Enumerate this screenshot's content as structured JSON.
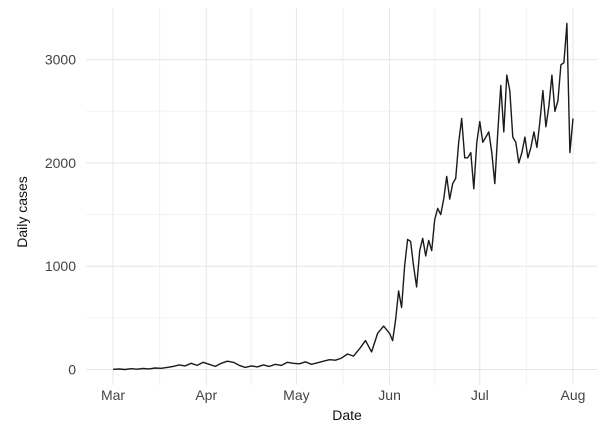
{
  "chart_data": {
    "type": "line",
    "title": "",
    "xlabel": "Date",
    "ylabel": "Daily cases",
    "x_ticks": [
      {
        "label": "Mar",
        "date": "2020-03-01"
      },
      {
        "label": "Apr",
        "date": "2020-04-01"
      },
      {
        "label": "May",
        "date": "2020-05-01"
      },
      {
        "label": "Jun",
        "date": "2020-06-01"
      },
      {
        "label": "Jul",
        "date": "2020-07-01"
      },
      {
        "label": "Aug",
        "date": "2020-08-01"
      }
    ],
    "y_ticks": [
      0,
      1000,
      2000,
      3000
    ],
    "xlim": [
      "2020-02-21",
      "2020-08-09"
    ],
    "ylim": [
      -150,
      3500
    ],
    "grid": true,
    "colors": {
      "line": "#1a1a1a",
      "grid": "#e6e6e6"
    },
    "series": [
      {
        "x": [
          "2020-03-01",
          "2020-03-03",
          "2020-03-05",
          "2020-03-07",
          "2020-03-09",
          "2020-03-11",
          "2020-03-13",
          "2020-03-15",
          "2020-03-17",
          "2020-03-19",
          "2020-03-21",
          "2020-03-23",
          "2020-03-25",
          "2020-03-27",
          "2020-03-29",
          "2020-03-31",
          "2020-04-02",
          "2020-04-04",
          "2020-04-06",
          "2020-04-08",
          "2020-04-10",
          "2020-04-12",
          "2020-04-14",
          "2020-04-16",
          "2020-04-18",
          "2020-04-20",
          "2020-04-22",
          "2020-04-24",
          "2020-04-26",
          "2020-04-28",
          "2020-04-30",
          "2020-05-02",
          "2020-05-04",
          "2020-05-06",
          "2020-05-08",
          "2020-05-10",
          "2020-05-12",
          "2020-05-14",
          "2020-05-16",
          "2020-05-18",
          "2020-05-20",
          "2020-05-22",
          "2020-05-24",
          "2020-05-26",
          "2020-05-28",
          "2020-05-30",
          "2020-06-01",
          "2020-06-02",
          "2020-06-03",
          "2020-06-04",
          "2020-06-05",
          "2020-06-06",
          "2020-06-07",
          "2020-06-08",
          "2020-06-09",
          "2020-06-10",
          "2020-06-11",
          "2020-06-12",
          "2020-06-13",
          "2020-06-14",
          "2020-06-15",
          "2020-06-16",
          "2020-06-17",
          "2020-06-18",
          "2020-06-19",
          "2020-06-20",
          "2020-06-21",
          "2020-06-22",
          "2020-06-23",
          "2020-06-24",
          "2020-06-25",
          "2020-06-26",
          "2020-06-27",
          "2020-06-28",
          "2020-06-29",
          "2020-06-30",
          "2020-07-01",
          "2020-07-02",
          "2020-07-03",
          "2020-07-04",
          "2020-07-05",
          "2020-07-06",
          "2020-07-07",
          "2020-07-08",
          "2020-07-09",
          "2020-07-10",
          "2020-07-11",
          "2020-07-12",
          "2020-07-13",
          "2020-07-14",
          "2020-07-15",
          "2020-07-16",
          "2020-07-17",
          "2020-07-18",
          "2020-07-19",
          "2020-07-20",
          "2020-07-21",
          "2020-07-22",
          "2020-07-23",
          "2020-07-24",
          "2020-07-25",
          "2020-07-26",
          "2020-07-27",
          "2020-07-28",
          "2020-07-29",
          "2020-07-30",
          "2020-07-31",
          "2020-08-01"
        ],
        "y": [
          2,
          5,
          0,
          8,
          3,
          10,
          6,
          15,
          12,
          20,
          30,
          45,
          35,
          60,
          40,
          70,
          50,
          30,
          60,
          80,
          70,
          40,
          20,
          35,
          25,
          45,
          30,
          50,
          40,
          70,
          60,
          55,
          75,
          50,
          65,
          80,
          95,
          90,
          110,
          150,
          130,
          200,
          280,
          170,
          350,
          420,
          350,
          280,
          480,
          760,
          600,
          1000,
          1260,
          1240,
          1000,
          800,
          1150,
          1270,
          1100,
          1250,
          1150,
          1450,
          1560,
          1500,
          1650,
          1870,
          1650,
          1800,
          1850,
          2200,
          2430,
          2050,
          2050,
          2100,
          1750,
          2200,
          2400,
          2200,
          2250,
          2300,
          2100,
          1800,
          2300,
          2750,
          2300,
          2850,
          2700,
          2250,
          2200,
          2000,
          2100,
          2250,
          2050,
          2150,
          2300,
          2150,
          2400,
          2700,
          2350,
          2550,
          2850,
          2500,
          2600,
          2950,
          2970,
          3350,
          2100,
          2430
        ]
      }
    ]
  }
}
